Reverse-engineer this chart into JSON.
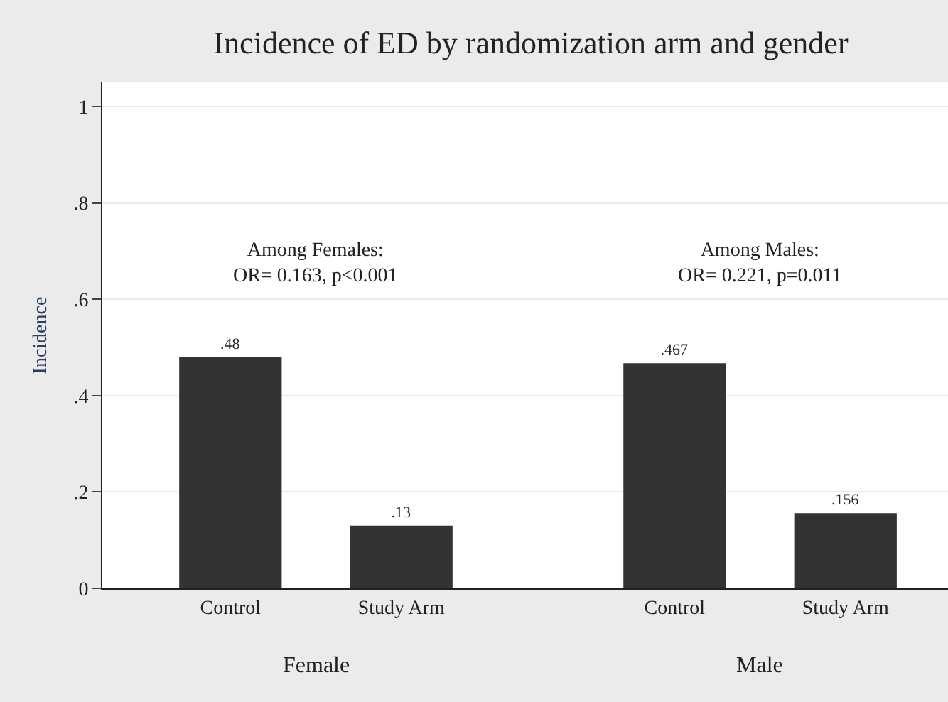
{
  "chart_data": {
    "type": "bar",
    "title": "Incidence of ED by randomization arm and gender",
    "ylabel": "Incidence",
    "categories": [
      "Control",
      "Study Arm",
      "Control",
      "Study Arm"
    ],
    "values": [
      0.48,
      0.13,
      0.467,
      0.156
    ],
    "value_labels": [
      ".48",
      ".13",
      ".467",
      ".156"
    ],
    "color": "#333333",
    "ylim": [
      0,
      1.05
    ],
    "yticks": [
      0,
      {
        "value": 0.2,
        "label": ".2"
      },
      {
        "value": 0.4,
        "label": ".4"
      },
      {
        "value": 0.6,
        "label": ".6"
      },
      {
        "value": 0.8,
        "label": ".8"
      },
      1
    ],
    "grid": "y",
    "legend": false,
    "annotations": [
      "Female",
      "Male",
      "Among Females:\nOR= 0.163, p<0.001",
      "Among Males:\nOR= 0.221, p=0.011"
    ]
  }
}
